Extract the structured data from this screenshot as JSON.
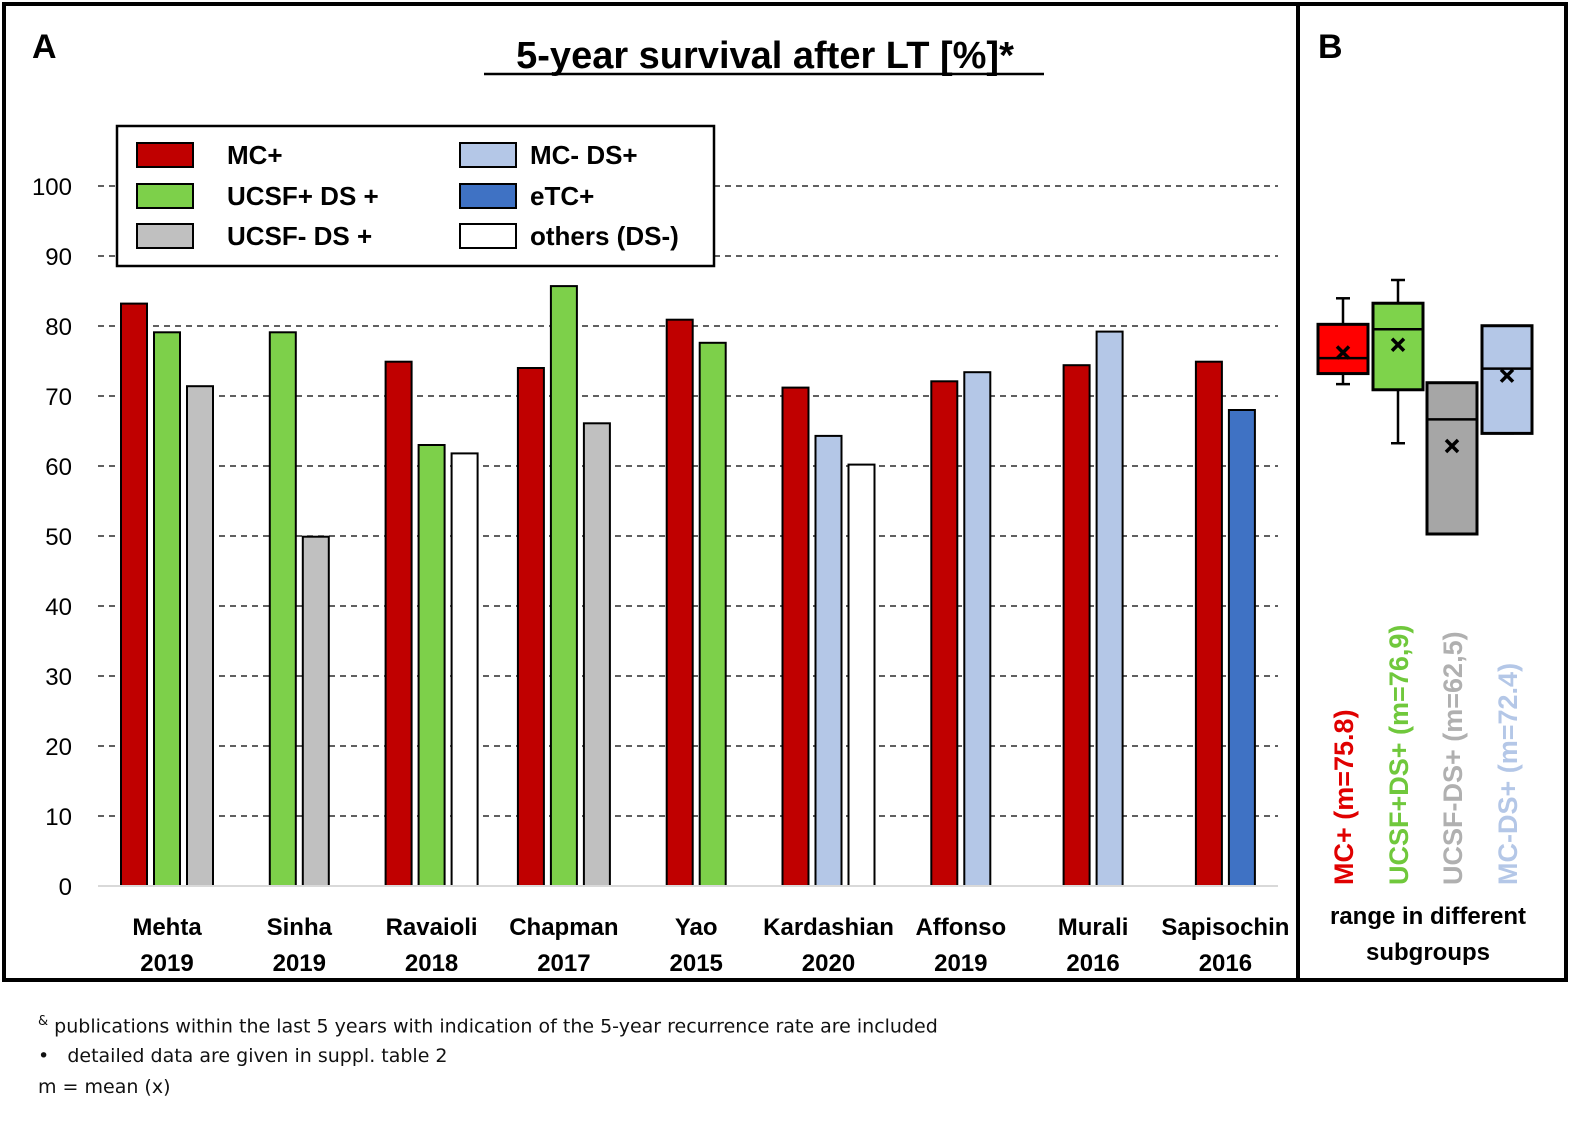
{
  "panel_a": {
    "label": "A",
    "title": "5-year survival after LT [%]*"
  },
  "panel_b": {
    "label": "B",
    "caption_line1": "range in different",
    "caption_line2": "subgroups"
  },
  "colors": {
    "mc_plus": "#c00000",
    "ucsf_plus_ds_plus": "#7dd04a",
    "ucsf_minus_ds_plus": "#c0c0c0",
    "mc_minus_ds_plus": "#b4c7e7",
    "etc_plus": "#3f72c4",
    "others": "#ffffff",
    "box_mc_plus": "#ff0000",
    "box_ucsf_plus": "#7ed34b",
    "box_ucsf_minus": "#a6a6a6",
    "box_mc_minus": "#b4c7e7"
  },
  "chart_data": [
    {
      "type": "bar",
      "title": "5-year survival after LT [%]*",
      "xlabel": "",
      "ylabel": "",
      "ylim": [
        0,
        100
      ],
      "yticks": [
        0,
        10,
        20,
        30,
        40,
        50,
        60,
        70,
        80,
        90,
        100
      ],
      "grid": "horizontal dashed",
      "legend_position": "top-left",
      "legend": [
        {
          "key": "mc_plus",
          "label": "MC+"
        },
        {
          "key": "mc_minus_ds_plus",
          "label": "MC- DS+"
        },
        {
          "key": "ucsf_plus_ds_plus",
          "label": "UCSF+ DS +"
        },
        {
          "key": "etc_plus",
          "label": "eTC+"
        },
        {
          "key": "ucsf_minus_ds_plus",
          "label": "UCSF- DS +"
        },
        {
          "key": "others",
          "label": "others (DS-)"
        }
      ],
      "groups": [
        {
          "author": "Mehta",
          "year": "2019",
          "bars": [
            {
              "series": "mc_plus",
              "value": 83.2
            },
            {
              "series": "ucsf_plus_ds_plus",
              "value": 79.1
            },
            {
              "series": "ucsf_minus_ds_plus",
              "value": 71.4
            }
          ]
        },
        {
          "author": "Sinha",
          "year": "2019",
          "bars": [
            {
              "series": "ucsf_plus_ds_plus",
              "value": 79.1
            },
            {
              "series": "ucsf_minus_ds_plus",
              "value": 49.9
            }
          ]
        },
        {
          "author": "Ravaioli",
          "year": "2018",
          "bars": [
            {
              "series": "mc_plus",
              "value": 74.9
            },
            {
              "series": "ucsf_plus_ds_plus",
              "value": 63.0
            },
            {
              "series": "others",
              "value": 61.8
            }
          ]
        },
        {
          "author": "Chapman",
          "year": "2017",
          "bars": [
            {
              "series": "mc_plus",
              "value": 74.0
            },
            {
              "series": "ucsf_plus_ds_plus",
              "value": 85.7
            },
            {
              "series": "ucsf_minus_ds_plus",
              "value": 66.1
            }
          ]
        },
        {
          "author": "Yao",
          "year": "2015",
          "bars": [
            {
              "series": "mc_plus",
              "value": 80.9
            },
            {
              "series": "ucsf_plus_ds_plus",
              "value": 77.6
            }
          ]
        },
        {
          "author": "Kardashian",
          "year": "2020",
          "bars": [
            {
              "series": "mc_plus",
              "value": 71.2
            },
            {
              "series": "mc_minus_ds_plus",
              "value": 64.3
            },
            {
              "series": "others",
              "value": 60.2
            }
          ]
        },
        {
          "author": "Affonso",
          "year": "2019",
          "bars": [
            {
              "series": "mc_plus",
              "value": 72.1
            },
            {
              "series": "mc_minus_ds_plus",
              "value": 73.4
            }
          ]
        },
        {
          "author": "Murali",
          "year": "2016",
          "bars": [
            {
              "series": "mc_plus",
              "value": 74.4
            },
            {
              "series": "mc_minus_ds_plus",
              "value": 79.2
            }
          ]
        },
        {
          "author": "Sapisochin",
          "year": "2016",
          "bars": [
            {
              "series": "mc_plus",
              "value": 74.9
            },
            {
              "series": "etc_plus",
              "value": 68.0
            }
          ]
        }
      ]
    },
    {
      "type": "box",
      "ylim": [
        0,
        100
      ],
      "boxes": [
        {
          "key": "box_mc_plus",
          "label": "MC+ (m=75.8)",
          "label_color": "#e00000",
          "min": 71.8,
          "q1": 73.3,
          "median": 75.5,
          "q3": 80.3,
          "max": 84.0,
          "mean": 76.3
        },
        {
          "key": "box_ucsf_plus",
          "label": "UCSF+DS+ (m=76,9)",
          "label_color": "#70c83c",
          "min": 63.4,
          "q1": 71.0,
          "median": 79.6,
          "q3": 83.3,
          "max": 86.6,
          "mean": 77.4
        },
        {
          "key": "box_ucsf_minus",
          "label": "UCSF-DS+ (m=62,5)",
          "label_color": "#b0b0b0",
          "min": 50.5,
          "q1": 50.5,
          "median": 66.8,
          "q3": 72.0,
          "max": 72.0,
          "mean": 63.0
        },
        {
          "key": "box_mc_minus",
          "label": "MC-DS+ (m=72.4)",
          "label_color": "#b4c7e7",
          "min": 64.8,
          "q1": 64.8,
          "median": 74.0,
          "q3": 80.1,
          "max": 80.1,
          "mean": 73.0
        }
      ]
    }
  ],
  "footnotes": {
    "line1_mark": "&",
    "line1": " publications within the last 5 years with indication of the  5-year recurrence  rate are included",
    "line2_mark": "•",
    "line2": "detailed data are given in suppl. table 2",
    "line3": "m = mean (x)"
  }
}
